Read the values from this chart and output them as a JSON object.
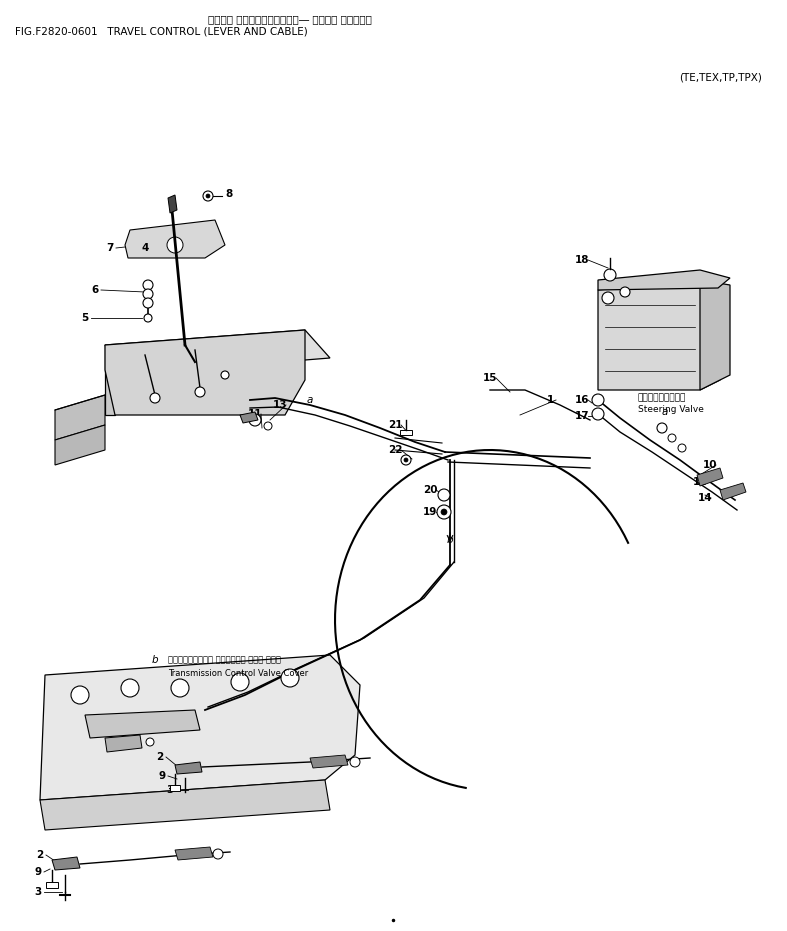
{
  "title_japanese": "ソウコウ コントロール（レバー― オヨビ・ ケーブル）",
  "title_line2": "FIG.F2820-0601   TRAVEL CONTROL (LEVER AND CABLE)",
  "subtitle": "(TE,TEX,TP,TPX)",
  "bg_color": "#ffffff",
  "text_color": "#000000",
  "steering_valve_jp": "ステアリングバルブ",
  "steering_valve_en": "Steering Valve",
  "trans_cover_jp": "トランスミッション コントロール バルブ カバー",
  "trans_cover_en": "Transmission Control Valve Cover"
}
